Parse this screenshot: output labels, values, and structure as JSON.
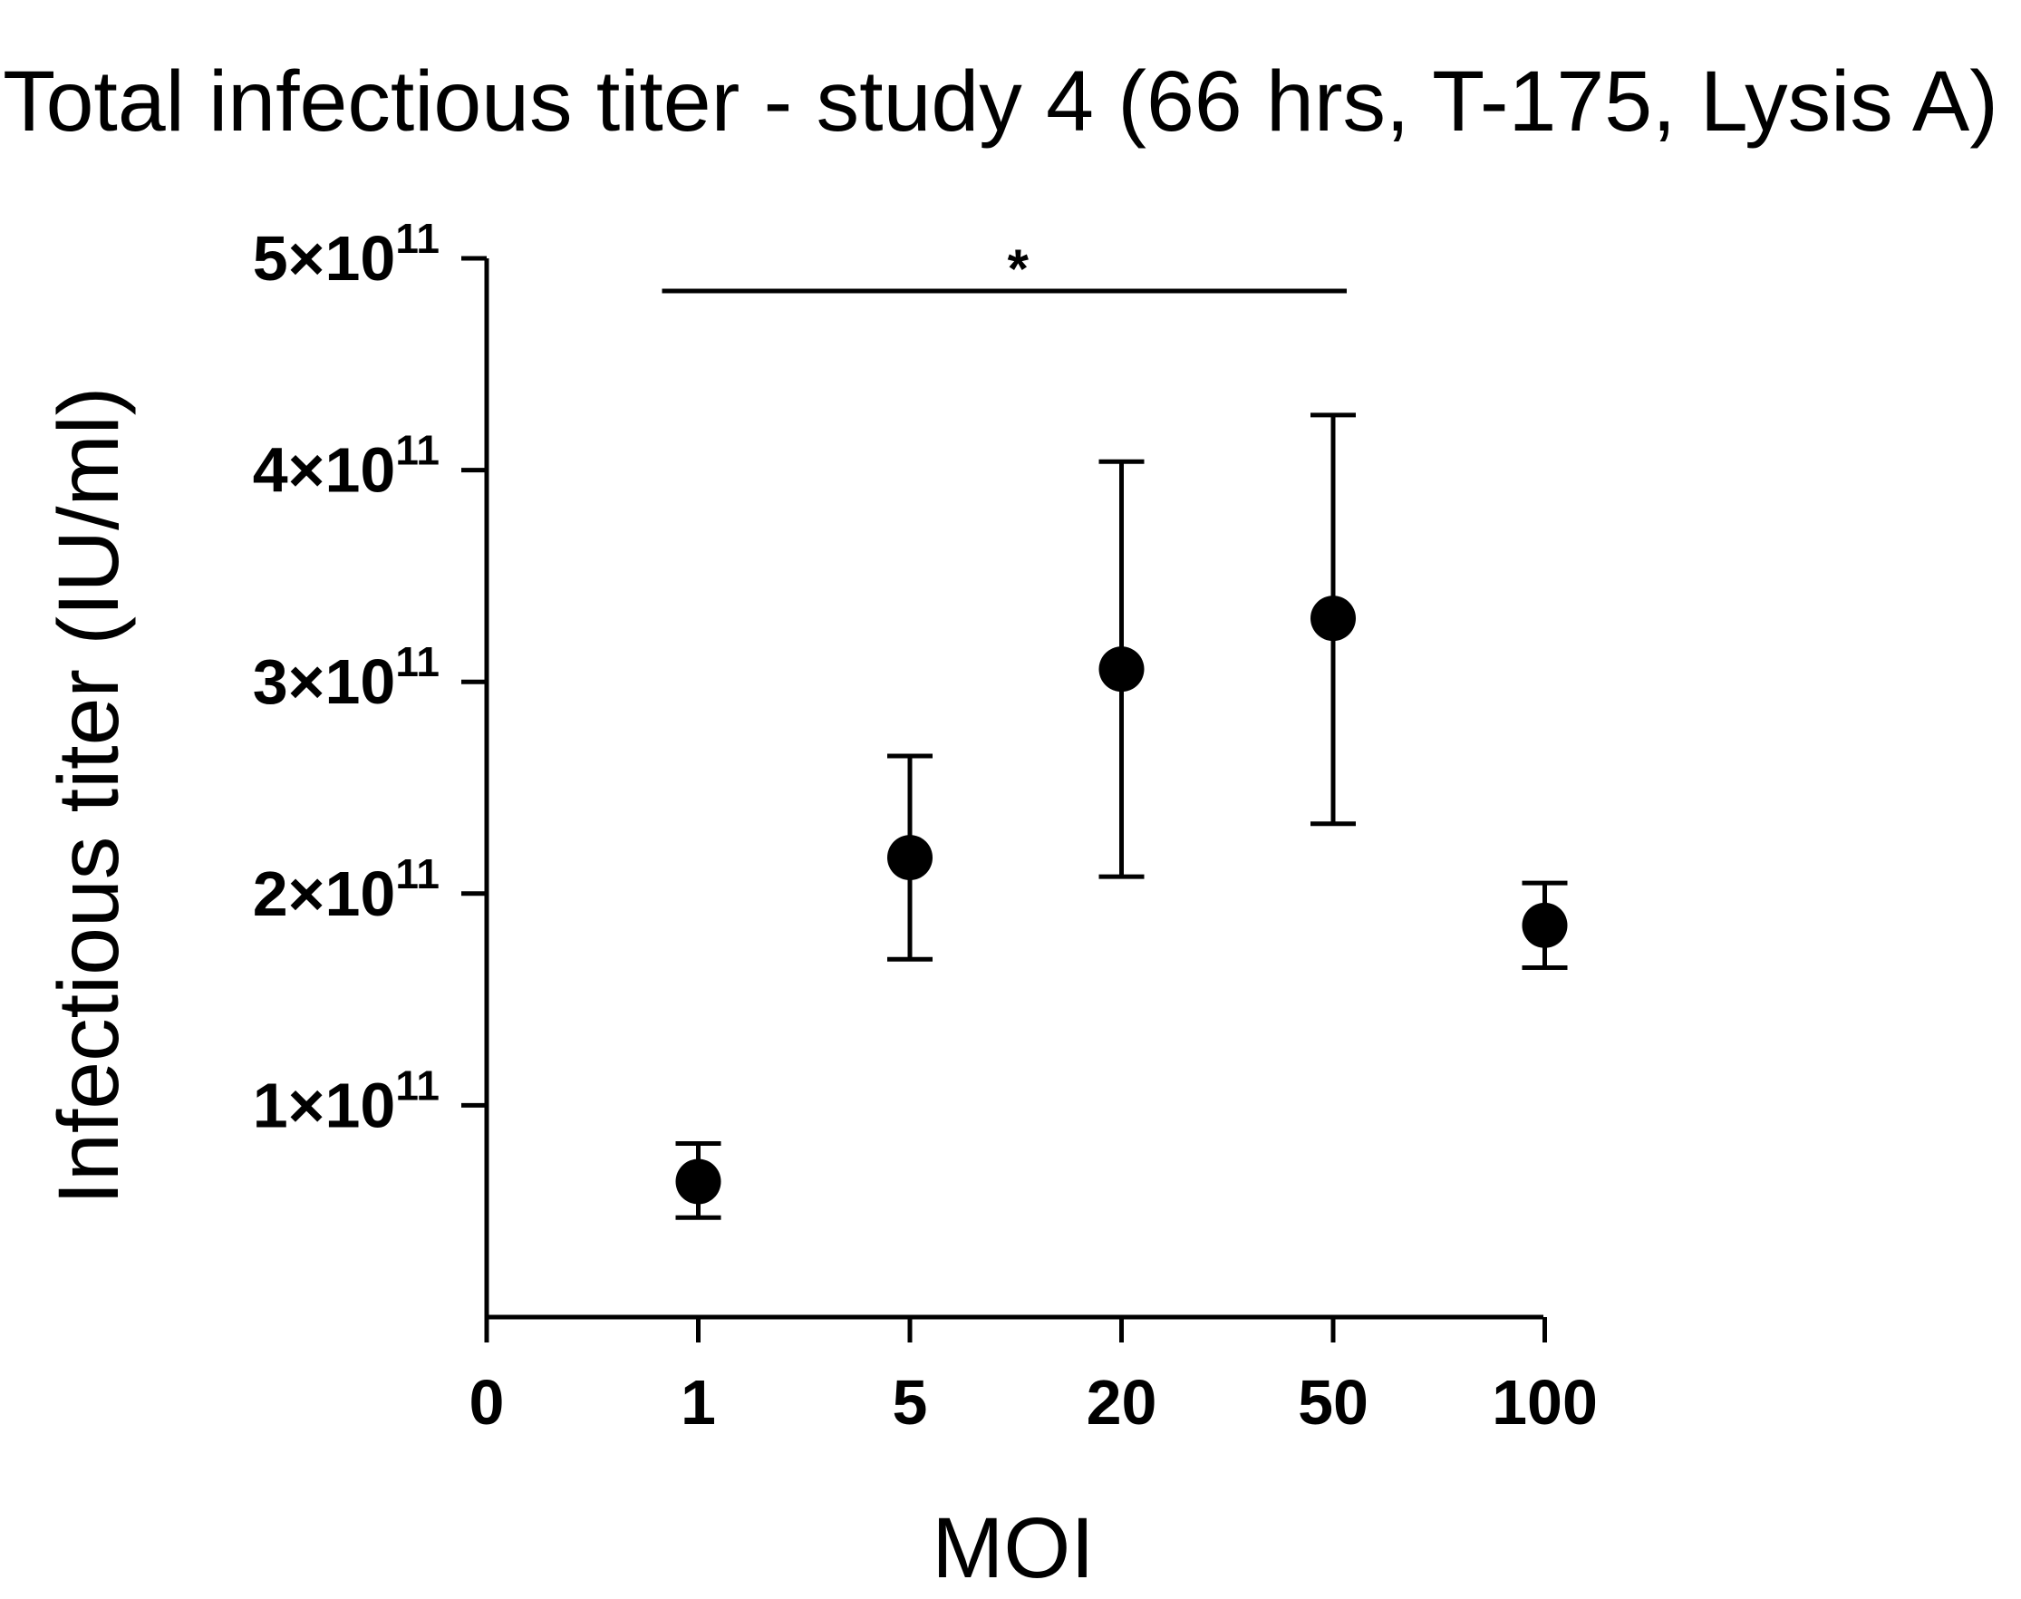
{
  "chart_data": {
    "type": "scatter",
    "title": "Total infectious titer - study 4 (66 hrs, T-175, Lysis A)",
    "xlabel": "MOI",
    "ylabel": "Infectious titer (IU/ml)",
    "x_categories": [
      "0",
      "1",
      "5",
      "20",
      "50",
      "100"
    ],
    "ylim": [
      0,
      500000000000
    ],
    "y_ticks": [
      {
        "value": 100000000000,
        "mantissa": "1",
        "base": "×10",
        "exponent": "11"
      },
      {
        "value": 200000000000,
        "mantissa": "2",
        "base": "×10",
        "exponent": "11"
      },
      {
        "value": 300000000000,
        "mantissa": "3",
        "base": "×10",
        "exponent": "11"
      },
      {
        "value": 400000000000,
        "mantissa": "4",
        "base": "×10",
        "exponent": "11"
      },
      {
        "value": 500000000000,
        "mantissa": "5",
        "base": "×10",
        "exponent": "11"
      }
    ],
    "series": [
      {
        "points": [
          {
            "x": "1",
            "y": 64000000000,
            "err_low": 47000000000,
            "err_high": 82000000000
          },
          {
            "x": "5",
            "y": 217000000000,
            "err_low": 169000000000,
            "err_high": 265000000000
          },
          {
            "x": "20",
            "y": 306000000000,
            "err_low": 208000000000,
            "err_high": 404000000000
          },
          {
            "x": "50",
            "y": 330000000000,
            "err_low": 233000000000,
            "err_high": 426000000000
          },
          {
            "x": "100",
            "y": 185000000000,
            "err_low": 165000000000,
            "err_high": 205000000000
          }
        ]
      }
    ],
    "significance": [
      {
        "from": "1",
        "to": "50",
        "label": "*"
      }
    ],
    "grid": false,
    "colors": {
      "marker": "#000000",
      "axis": "#000000"
    }
  }
}
